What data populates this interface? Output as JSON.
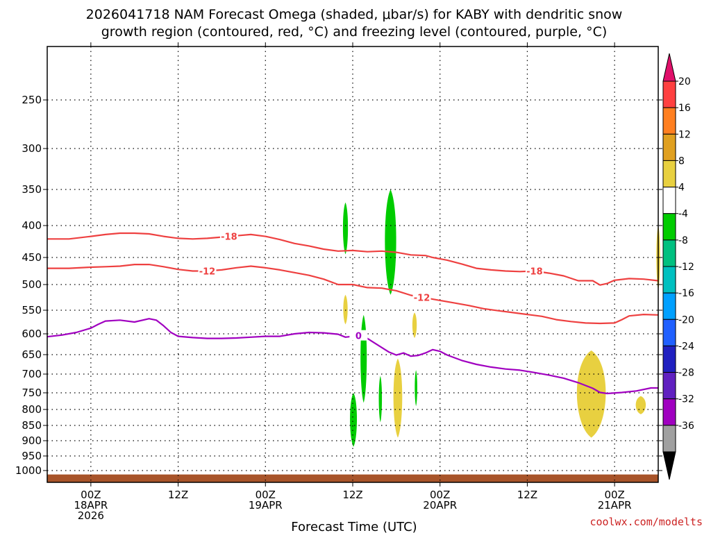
{
  "chart_data": {
    "type": "heatmap",
    "title_line1": "2026041718 NAM Forecast Omega (shaded, μbar/s) for KABY with dendritic snow",
    "title_line2": "growth region (contoured, red, °C) and freezing level (contoured, purple, °C)",
    "xlabel": "Forecast Time (UTC)",
    "ylabel": "",
    "credit": "coolwx.com/modelts",
    "x_range_hours": [
      -6,
      78
    ],
    "y_range_hpa": [
      200,
      1030
    ],
    "y_ticks": [
      250,
      300,
      350,
      400,
      450,
      500,
      550,
      600,
      650,
      700,
      750,
      800,
      850,
      900,
      950,
      1000
    ],
    "x_ticks": [
      {
        "hour": 0,
        "lines": [
          "00Z",
          "18APR",
          "2026"
        ]
      },
      {
        "hour": 12,
        "lines": [
          "12Z"
        ]
      },
      {
        "hour": 24,
        "lines": [
          "00Z",
          "19APR"
        ]
      },
      {
        "hour": 36,
        "lines": [
          "12Z"
        ]
      },
      {
        "hour": 48,
        "lines": [
          "00Z",
          "20APR"
        ]
      },
      {
        "hour": 60,
        "lines": [
          "12Z"
        ]
      },
      {
        "hour": 72,
        "lines": [
          "00Z",
          "21APR"
        ]
      }
    ],
    "colorbar": {
      "levels": [
        20,
        16,
        12,
        8,
        4,
        -4,
        -8,
        -12,
        -16,
        -20,
        -24,
        -28,
        -32,
        -36
      ],
      "colors": [
        "#ff4040",
        "#ff7f20",
        "#e0a020",
        "#e8d040",
        "#ffffff",
        "#00cc00",
        "#00c080",
        "#00c0c0",
        "#00a0ff",
        "#2060ff",
        "#2020c0",
        "#6020c0",
        "#a000c0",
        "#a0a0a0"
      ],
      "top_arrow_color": "#e0106a",
      "bottom_arrow_color": "#000000"
    },
    "contours": [
      {
        "name": "-18 °C isotherm",
        "label": "-18",
        "color": "#ee4040",
        "label_hours": [
          19,
          61
        ],
        "points": [
          [
            -6,
            421
          ],
          [
            -3,
            421
          ],
          [
            0,
            417
          ],
          [
            2,
            414
          ],
          [
            4,
            412
          ],
          [
            6,
            412
          ],
          [
            8,
            413
          ],
          [
            10,
            417
          ],
          [
            12,
            420
          ],
          [
            14,
            421
          ],
          [
            16,
            420
          ],
          [
            18,
            418
          ],
          [
            20,
            416
          ],
          [
            22,
            414
          ],
          [
            24,
            417
          ],
          [
            26,
            422
          ],
          [
            28,
            428
          ],
          [
            30,
            432
          ],
          [
            32,
            437
          ],
          [
            34,
            440
          ],
          [
            36,
            439
          ],
          [
            38,
            441
          ],
          [
            40,
            440
          ],
          [
            42,
            442
          ],
          [
            44,
            446
          ],
          [
            46,
            447
          ],
          [
            47,
            450
          ],
          [
            49,
            455
          ],
          [
            51,
            462
          ],
          [
            53,
            470
          ],
          [
            55,
            473
          ],
          [
            57,
            475
          ],
          [
            59,
            476
          ],
          [
            61,
            475
          ],
          [
            63,
            479
          ],
          [
            65,
            484
          ],
          [
            67,
            493
          ],
          [
            69,
            493
          ],
          [
            70,
            501
          ],
          [
            71,
            498
          ],
          [
            72,
            492
          ],
          [
            74,
            489
          ],
          [
            76,
            490
          ],
          [
            78,
            493
          ]
        ]
      },
      {
        "name": "-12 °C isotherm",
        "label": "-12",
        "color": "#ee4040",
        "label_hours": [
          16,
          45.5
        ],
        "points": [
          [
            -6,
            470
          ],
          [
            -3,
            470
          ],
          [
            0,
            468
          ],
          [
            2,
            467
          ],
          [
            4,
            466
          ],
          [
            6,
            463
          ],
          [
            8,
            463
          ],
          [
            10,
            467
          ],
          [
            12,
            472
          ],
          [
            14,
            475
          ],
          [
            16,
            475
          ],
          [
            18,
            473
          ],
          [
            20,
            469
          ],
          [
            22,
            466
          ],
          [
            24,
            469
          ],
          [
            26,
            473
          ],
          [
            28,
            478
          ],
          [
            30,
            483
          ],
          [
            32,
            490
          ],
          [
            34,
            500
          ],
          [
            36,
            500
          ],
          [
            38,
            506
          ],
          [
            40,
            507
          ],
          [
            42,
            512
          ],
          [
            44,
            521
          ],
          [
            46,
            526
          ],
          [
            48,
            531
          ],
          [
            50,
            536
          ],
          [
            52,
            541
          ],
          [
            54,
            547
          ],
          [
            56,
            551
          ],
          [
            58,
            555
          ],
          [
            60,
            559
          ],
          [
            62,
            563
          ],
          [
            64,
            570
          ],
          [
            66,
            574
          ],
          [
            68,
            577
          ],
          [
            70,
            578
          ],
          [
            72,
            577
          ],
          [
            73,
            570
          ],
          [
            74,
            562
          ],
          [
            76,
            559
          ],
          [
            78,
            560
          ]
        ]
      },
      {
        "name": "0 °C freezing level",
        "label": "0",
        "color": "#a000c0",
        "label_hours": [
          36.8
        ],
        "points": [
          [
            -6,
            607
          ],
          [
            -4,
            603
          ],
          [
            -2,
            597
          ],
          [
            0,
            588
          ],
          [
            1,
            580
          ],
          [
            2,
            573
          ],
          [
            4,
            571
          ],
          [
            6,
            575
          ],
          [
            8,
            568
          ],
          [
            9,
            571
          ],
          [
            10,
            583
          ],
          [
            11,
            597
          ],
          [
            12,
            606
          ],
          [
            14,
            609
          ],
          [
            16,
            611
          ],
          [
            18,
            611
          ],
          [
            20,
            610
          ],
          [
            22,
            608
          ],
          [
            24,
            606
          ],
          [
            26,
            606
          ],
          [
            28,
            600
          ],
          [
            30,
            597
          ],
          [
            32,
            598
          ],
          [
            34,
            601
          ],
          [
            35,
            608
          ],
          [
            37,
            604
          ],
          [
            38,
            611
          ],
          [
            39,
            622
          ],
          [
            40,
            633
          ],
          [
            41,
            644
          ],
          [
            42,
            651
          ],
          [
            43,
            646
          ],
          [
            44,
            654
          ],
          [
            45,
            652
          ],
          [
            46,
            646
          ],
          [
            47,
            638
          ],
          [
            48,
            642
          ],
          [
            49,
            651
          ],
          [
            51,
            665
          ],
          [
            53,
            675
          ],
          [
            55,
            682
          ],
          [
            57,
            687
          ],
          [
            59,
            690
          ],
          [
            61,
            696
          ],
          [
            63,
            703
          ],
          [
            65,
            711
          ],
          [
            67,
            723
          ],
          [
            69,
            738
          ],
          [
            70,
            749
          ],
          [
            71,
            752
          ],
          [
            73,
            749
          ],
          [
            75,
            745
          ],
          [
            77,
            737
          ],
          [
            78,
            737
          ]
        ]
      }
    ],
    "omega_regions": [
      {
        "value_range": "-8 to -4",
        "color": "#00cc00",
        "h": 35.0,
        "w": 0.8,
        "p_top": 368,
        "p_bot": 445
      },
      {
        "value_range": "-8 to -4",
        "color": "#00cc00",
        "h": 41.2,
        "w": 1.8,
        "p_top": 350,
        "p_bot": 520
      },
      {
        "value_range": "-8 to -4",
        "color": "#00cc00",
        "h": 37.5,
        "w": 1.0,
        "p_top": 560,
        "p_bot": 780
      },
      {
        "value_range": "-8 to -4",
        "color": "#00cc00",
        "h": 39.8,
        "w": 0.5,
        "p_top": 705,
        "p_bot": 840
      },
      {
        "value_range": "-8 to -4",
        "color": "#00cc00",
        "h": 36.1,
        "w": 1.1,
        "p_top": 750,
        "p_bot": 920
      },
      {
        "value_range": "-8 to -4",
        "color": "#00cc00",
        "h": 44.7,
        "w": 0.4,
        "p_top": 690,
        "p_bot": 790
      },
      {
        "value_range": "4 to 8",
        "color": "#e8d040",
        "h": 35.0,
        "w": 0.7,
        "p_top": 520,
        "p_bot": 580
      },
      {
        "value_range": "4 to 8",
        "color": "#e8d040",
        "h": 44.5,
        "w": 0.7,
        "p_top": 555,
        "p_bot": 610
      },
      {
        "value_range": "4 to 8",
        "color": "#e8d040",
        "h": 42.2,
        "w": 1.4,
        "p_top": 660,
        "p_bot": 890
      },
      {
        "value_range": "4 to 8",
        "color": "#e8d040",
        "h": 68.8,
        "w": 4.6,
        "p_top": 640,
        "p_bot": 890
      },
      {
        "value_range": "4 to 8",
        "color": "#e8d040",
        "h": 75.6,
        "w": 1.6,
        "p_top": 760,
        "p_bot": 815
      },
      {
        "value_range": "4 to 8",
        "color": "#e8d040",
        "h": 78.0,
        "w": 0.6,
        "p_top": 400,
        "p_bot": 510
      }
    ],
    "ground": {
      "color": "#a8542a",
      "p_top": 1010
    }
  }
}
